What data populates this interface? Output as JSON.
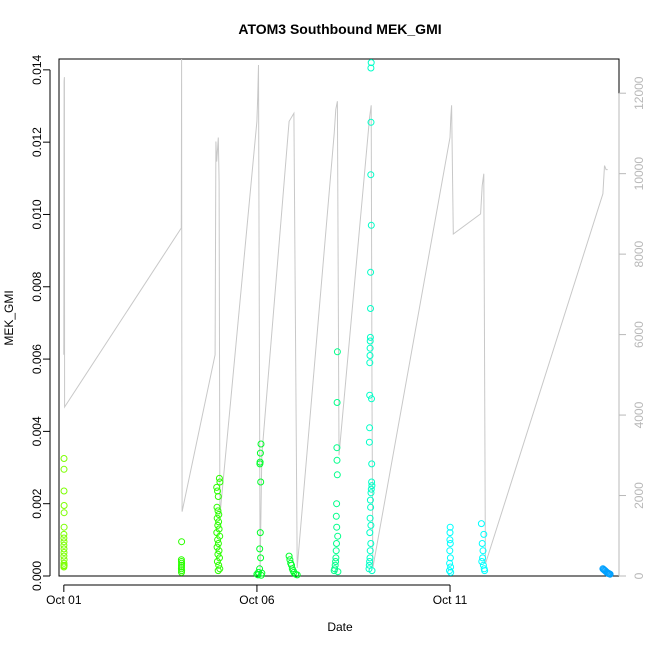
{
  "chart_data": {
    "type": "scatter",
    "title": "ATOM3 Southbound MEK_GMI",
    "xlabel": "Date",
    "ylabel": "MEK_GMI",
    "y2label": "",
    "x_ticks": [
      "Oct 01",
      "Oct 06",
      "Oct 11"
    ],
    "y_ticks": [
      "0.000",
      "0.002",
      "0.004",
      "0.006",
      "0.008",
      "0.010",
      "0.012",
      "0.014"
    ],
    "y2_ticks": [
      "0",
      "2000",
      "4000",
      "6000",
      "8000",
      "10000",
      "12000"
    ],
    "xlim": [
      "2010-09-30T21:00",
      "2010-10-15T09:00"
    ],
    "ylim": [
      0,
      0.0143
    ],
    "y2lim": [
      0,
      12850
    ],
    "grid": false,
    "colors": {
      "line": "#c8c8c8",
      "secondary_axis": "#b8b8b8"
    },
    "series": [
      {
        "color": "#7cff00",
        "points": [
          [
            "2010-10-01T00:05",
            0.00325
          ],
          [
            "2010-10-01T00:06",
            0.00295
          ],
          [
            "2010-10-01T00:08",
            0.00235
          ],
          [
            "2010-10-01T00:09",
            0.00195
          ],
          [
            "2010-10-01T00:12",
            0.00175
          ],
          [
            "2010-10-01T00:10",
            0.00135
          ],
          [
            "2010-10-01T00:02",
            0.00115
          ],
          [
            "2010-10-01T00:04",
            0.00105
          ],
          [
            "2010-10-01T00:07",
            0.00095
          ],
          [
            "2010-10-01T00:03",
            0.00085
          ],
          [
            "2010-10-01T00:08",
            0.00075
          ],
          [
            "2010-10-01T00:05",
            0.00065
          ],
          [
            "2010-10-01T00:01",
            0.00055
          ],
          [
            "2010-10-01T00:09",
            0.00045
          ],
          [
            "2010-10-01T00:06",
            0.00035
          ],
          [
            "2010-10-01T00:02",
            0.00028
          ],
          [
            "2010-10-01T00:11",
            0.0003
          ],
          [
            "2010-10-01T00:04",
            0.00025
          ]
        ]
      },
      {
        "color": "#2bff00",
        "points": [
          [
            "2010-10-04T01:10",
            0.00095
          ],
          [
            "2010-10-04T01:05",
            0.00045
          ],
          [
            "2010-10-04T01:08",
            0.0004
          ],
          [
            "2010-10-04T01:12",
            0.00035
          ],
          [
            "2010-10-04T01:06",
            0.0003
          ],
          [
            "2010-10-04T01:09",
            0.00025
          ],
          [
            "2010-10-04T01:04",
            0.0002
          ],
          [
            "2010-10-04T01:11",
            0.00015
          ],
          [
            "2010-10-04T01:07",
            0.0001
          ],
          [
            "2010-10-04T23:00",
            0.00245
          ],
          [
            "2010-10-04T23:30",
            0.00235
          ],
          [
            "2010-10-05T00:00",
            0.0022
          ],
          [
            "2010-10-05T00:40",
            0.0027
          ],
          [
            "2010-10-05T01:00",
            0.0026
          ],
          [
            "2010-10-04T23:10",
            0.0019
          ],
          [
            "2010-10-04T23:50",
            0.0018
          ],
          [
            "2010-10-05T00:20",
            0.0017
          ],
          [
            "2010-10-04T23:20",
            0.0016
          ],
          [
            "2010-10-05T00:10",
            0.0015
          ],
          [
            "2010-10-04T23:40",
            0.0014
          ],
          [
            "2010-10-05T00:30",
            0.0013
          ],
          [
            "2010-10-04T23:05",
            0.0012
          ],
          [
            "2010-10-05T00:50",
            0.0011
          ],
          [
            "2010-10-04T23:35",
            0.001
          ],
          [
            "2010-10-05T00:05",
            0.0009
          ],
          [
            "2010-10-04T23:15",
            0.0008
          ],
          [
            "2010-10-05T00:25",
            0.0007
          ],
          [
            "2010-10-04T23:45",
            0.0006
          ],
          [
            "2010-10-05T00:45",
            0.0005
          ],
          [
            "2010-10-04T23:25",
            0.0004
          ],
          [
            "2010-10-05T00:15",
            0.0003
          ],
          [
            "2010-10-05T00:55",
            0.0002
          ],
          [
            "2010-10-04T23:55",
            0.00015
          ]
        ]
      },
      {
        "color": "#00ff2a",
        "points": [
          [
            "2010-10-06T02:30",
            0.00365
          ],
          [
            "2010-10-06T02:10",
            0.0034
          ],
          [
            "2010-10-06T02:00",
            0.00315
          ],
          [
            "2010-10-06T01:50",
            0.0031
          ],
          [
            "2010-10-06T02:20",
            0.0026
          ],
          [
            "2010-10-06T02:05",
            0.0012
          ],
          [
            "2010-10-06T01:45",
            0.00075
          ],
          [
            "2010-10-06T02:15",
            0.0005
          ],
          [
            "2010-10-06T01:40",
            0.0002
          ],
          [
            "2010-10-06T01:00",
            0.0001
          ],
          [
            "2010-10-06T00:00",
            5e-05
          ],
          [
            "2010-10-06T03:00",
            8e-05
          ],
          [
            "2010-10-06T00:40",
            3e-05
          ],
          [
            "2010-10-06T02:40",
            2e-05
          ],
          [
            "2010-10-06T20:00",
            0.00055
          ],
          [
            "2010-10-06T20:30",
            0.00045
          ],
          [
            "2010-10-06T21:00",
            0.00035
          ],
          [
            "2010-10-06T21:30",
            0.0003
          ],
          [
            "2010-10-06T22:00",
            0.0002
          ],
          [
            "2010-10-06T22:30",
            0.00015
          ],
          [
            "2010-10-06T23:00",
            0.0001
          ],
          [
            "2010-10-07T00:00",
            5e-05
          ],
          [
            "2010-10-07T01:00",
            3e-05
          ]
        ]
      },
      {
        "color": "#00ff8a",
        "points": [
          [
            "2010-10-08T02:00",
            0.0062
          ],
          [
            "2010-10-08T01:50",
            0.0048
          ],
          [
            "2010-10-08T01:40",
            0.00355
          ],
          [
            "2010-10-08T01:45",
            0.0032
          ],
          [
            "2010-10-08T01:55",
            0.0028
          ],
          [
            "2010-10-08T01:30",
            0.002
          ],
          [
            "2010-10-08T01:20",
            0.00165
          ],
          [
            "2010-10-08T01:35",
            0.00135
          ],
          [
            "2010-10-08T02:10",
            0.0011
          ],
          [
            "2010-10-08T01:25",
            0.0009
          ],
          [
            "2010-10-08T01:15",
            0.0007
          ],
          [
            "2010-10-08T01:05",
            0.0005
          ],
          [
            "2010-10-08T00:55",
            0.0004
          ],
          [
            "2010-10-08T00:40",
            0.0003
          ],
          [
            "2010-10-08T00:20",
            0.0002
          ],
          [
            "2010-10-08T00:00",
            0.00015
          ],
          [
            "2010-10-08T02:20",
            0.00012
          ]
        ]
      },
      {
        "color": "#00ffc8",
        "points": [
          [
            "2010-10-08T23:00",
            0.0142
          ],
          [
            "2010-10-08T22:50",
            0.01405
          ],
          [
            "2010-10-08T22:55",
            0.01255
          ],
          [
            "2010-10-08T22:45",
            0.0111
          ],
          [
            "2010-10-08T23:05",
            0.0097
          ],
          [
            "2010-10-08T22:40",
            0.0084
          ],
          [
            "2010-10-08T22:35",
            0.0074
          ],
          [
            "2010-10-08T22:30",
            0.0066
          ],
          [
            "2010-10-08T22:25",
            0.0065
          ],
          [
            "2010-10-08T22:20",
            0.0063
          ],
          [
            "2010-10-08T22:15",
            0.0061
          ],
          [
            "2010-10-08T22:10",
            0.0059
          ],
          [
            "2010-10-08T22:05",
            0.005
          ],
          [
            "2010-10-08T23:10",
            0.0049
          ],
          [
            "2010-10-08T22:00",
            0.0041
          ],
          [
            "2010-10-08T21:55",
            0.0037
          ],
          [
            "2010-10-08T23:20",
            0.0031
          ],
          [
            "2010-10-08T23:15",
            0.0026
          ],
          [
            "2010-10-08T23:25",
            0.0025
          ],
          [
            "2010-10-08T23:05",
            0.0024
          ],
          [
            "2010-10-08T22:55",
            0.0023
          ],
          [
            "2010-10-08T22:30",
            0.0021
          ],
          [
            "2010-10-08T22:40",
            0.0019
          ],
          [
            "2010-10-08T22:20",
            0.0016
          ],
          [
            "2010-10-08T22:50",
            0.0014
          ],
          [
            "2010-10-08T22:10",
            0.0012
          ],
          [
            "2010-10-08T22:45",
            0.0009
          ],
          [
            "2010-10-08T22:25",
            0.0007
          ],
          [
            "2010-10-08T22:15",
            0.0005
          ],
          [
            "2010-10-08T22:00",
            0.0004
          ],
          [
            "2010-10-08T21:50",
            0.0003
          ],
          [
            "2010-10-08T21:40",
            0.0002
          ],
          [
            "2010-10-08T23:30",
            0.00015
          ]
        ]
      },
      {
        "color": "#00ffff",
        "points": [
          [
            "2010-10-11T00:05",
            0.00135
          ],
          [
            "2010-10-11T00:00",
            0.0012
          ],
          [
            "2010-10-10T23:55",
            0.001
          ],
          [
            "2010-10-11T00:10",
            0.0009
          ],
          [
            "2010-10-10T23:50",
            0.0007
          ],
          [
            "2010-10-11T00:15",
            0.0005
          ],
          [
            "2010-10-10T23:45",
            0.00035
          ],
          [
            "2010-10-11T00:20",
            0.00025
          ],
          [
            "2010-10-10T23:40",
            0.00015
          ],
          [
            "2010-10-11T00:25",
            0.0001
          ],
          [
            "2010-10-11T19:30",
            0.00145
          ],
          [
            "2010-10-11T21:00",
            0.00115
          ],
          [
            "2010-10-11T20:00",
            0.0009
          ],
          [
            "2010-10-11T20:30",
            0.0007
          ],
          [
            "2010-10-11T20:15",
            0.0005
          ],
          [
            "2010-10-11T19:45",
            0.0004
          ],
          [
            "2010-10-11T20:45",
            0.0003
          ],
          [
            "2010-10-11T21:15",
            0.0002
          ],
          [
            "2010-10-11T21:30",
            0.00015
          ]
        ]
      },
      {
        "color": "#00a0ff",
        "points": [
          [
            "2010-10-14T23:00",
            0.0002
          ],
          [
            "2010-10-14T23:30",
            0.00018
          ],
          [
            "2010-10-15T00:00",
            0.00016
          ],
          [
            "2010-10-15T00:30",
            0.00014
          ],
          [
            "2010-10-15T01:00",
            0.00012
          ],
          [
            "2010-10-15T01:30",
            0.0001
          ],
          [
            "2010-10-15T02:00",
            8e-05
          ],
          [
            "2010-10-15T02:30",
            7e-05
          ],
          [
            "2010-10-15T03:00",
            6e-05
          ],
          [
            "2010-10-15T03:30",
            5e-05
          ]
        ]
      }
    ],
    "right_axis_line": {
      "color": "#c8c8c8",
      "points": [
        [
          "2010-10-01T00:00",
          5500
        ],
        [
          "2010-10-01T00:10",
          12300
        ],
        [
          "2010-10-01T00:20",
          12400
        ],
        [
          "2010-10-01T00:30",
          4200
        ],
        [
          "2010-10-04T01:00",
          8650
        ],
        [
          "2010-10-04T01:10",
          12850
        ],
        [
          "2010-10-04T01:20",
          6000
        ],
        [
          "2010-10-04T01:30",
          1600
        ],
        [
          "2010-10-04T22:00",
          5500
        ],
        [
          "2010-10-04T22:30",
          10800
        ],
        [
          "2010-10-04T23:00",
          10300
        ],
        [
          "2010-10-05T00:00",
          10900
        ],
        [
          "2010-10-05T00:30",
          9800
        ],
        [
          "2010-10-05T01:00",
          1500
        ],
        [
          "2010-10-06T00:00",
          11300
        ],
        [
          "2010-10-06T00:30",
          11900
        ],
        [
          "2010-10-06T01:00",
          12700
        ],
        [
          "2010-10-06T02:00",
          100
        ],
        [
          "2010-10-06T03:00",
          3000
        ],
        [
          "2010-10-06T20:00",
          11300
        ],
        [
          "2010-10-06T23:00",
          11500
        ],
        [
          "2010-10-07T01:00",
          200
        ],
        [
          "2010-10-08T00:00",
          11000
        ],
        [
          "2010-10-08T01:00",
          11600
        ],
        [
          "2010-10-08T02:00",
          11800
        ],
        [
          "2010-10-08T03:00",
          3000
        ],
        [
          "2010-10-08T22:00",
          11400
        ],
        [
          "2010-10-08T23:00",
          11700
        ],
        [
          "2010-10-08T23:30",
          4500
        ],
        [
          "2010-10-09T00:00",
          200
        ],
        [
          "2010-10-11T00:00",
          10900
        ],
        [
          "2010-10-11T00:30",
          11400
        ],
        [
          "2010-10-11T01:00",
          11700
        ],
        [
          "2010-10-11T02:00",
          8500
        ],
        [
          "2010-10-11T19:00",
          9000
        ],
        [
          "2010-10-11T20:00",
          9700
        ],
        [
          "2010-10-11T21:00",
          10000
        ],
        [
          "2010-10-11T22:00",
          300
        ],
        [
          "2010-10-14T23:00",
          9500
        ],
        [
          "2010-10-15T00:00",
          10200
        ],
        [
          "2010-10-15T01:00",
          10100
        ],
        [
          "2010-10-15T02:00",
          10100
        ]
      ]
    }
  }
}
